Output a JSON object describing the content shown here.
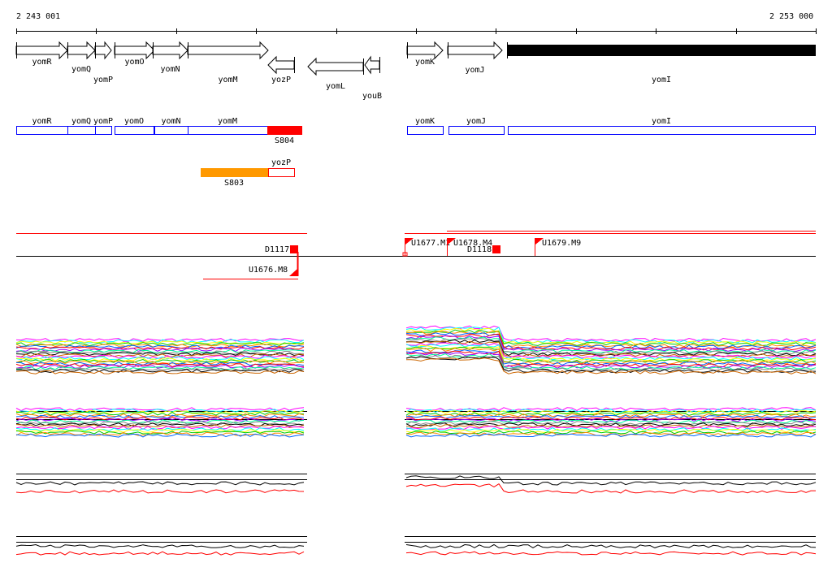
{
  "coordinates": {
    "start": "2 243 001",
    "end": "2 253 000"
  },
  "genes": [
    {
      "name": "yomR",
      "dir": 1,
      "x1": 20,
      "x2": 83,
      "row": 0
    },
    {
      "name": "yomQ",
      "dir": 1,
      "x1": 83,
      "x2": 117,
      "row": 1
    },
    {
      "name": "yomP",
      "dir": 1,
      "x1": 117,
      "x2": 137,
      "row": 2
    },
    {
      "name": "yomO",
      "dir": 1,
      "x1": 141,
      "x2": 190,
      "row": 0
    },
    {
      "name": "yomN",
      "dir": 1,
      "x1": 188,
      "x2": 231,
      "row": 1
    },
    {
      "name": "yomM",
      "dir": 1,
      "x1": 231,
      "x2": 330,
      "row": 2
    },
    {
      "name": "yozP",
      "dir": -1,
      "x1": 330,
      "x2": 362,
      "row": 2
    },
    {
      "name": "yomL",
      "dir": -1,
      "x1": 379,
      "x2": 447,
      "row": 3
    },
    {
      "name": "youB",
      "dir": -1,
      "x1": 449,
      "x2": 467,
      "row": 4
    },
    {
      "name": "yomK",
      "dir": 1,
      "x1": 501,
      "x2": 545,
      "row": 0
    },
    {
      "name": "yomJ",
      "dir": 1,
      "x1": 551,
      "x2": 618,
      "row": 1
    },
    {
      "name": "yomI",
      "dir": 0,
      "x1": 624,
      "x2": 1004,
      "row": 2
    }
  ],
  "segments": {
    "blue": [
      {
        "name": "yomR"
      },
      {
        "name": "yomQ"
      },
      {
        "name": "yomP"
      },
      {
        "name": "yomO"
      },
      {
        "name": "yomN"
      },
      {
        "name": "yomM"
      },
      {
        "name": "yomK"
      },
      {
        "name": "yomJ"
      },
      {
        "name": "yomI"
      }
    ],
    "S804": "S804",
    "S803": "S803",
    "yozP_box": "yozP"
  },
  "markers": [
    {
      "label": "D1117"
    },
    {
      "label": "U1676.M8"
    },
    {
      "label": "U1677.M1"
    },
    {
      "label": "U1678.M4"
    },
    {
      "label": "D1118"
    },
    {
      "label": "U1679.M9"
    }
  ],
  "colors": {
    "gene_box": "#0000ff",
    "s804": "#ff0000",
    "s803": "#ff9900",
    "marker": "#ff0000",
    "lines": [
      "#ff00ff",
      "#00ffff",
      "#ffff00",
      "#00cc00",
      "#ff8800",
      "#0066ff",
      "#ff0000",
      "#9900ff",
      "#00ff99",
      "#888888",
      "#000000",
      "#cc6600"
    ]
  }
}
